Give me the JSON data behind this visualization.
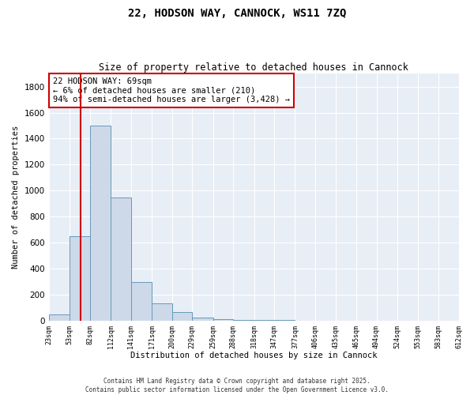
{
  "title": "22, HODSON WAY, CANNOCK, WS11 7ZQ",
  "subtitle": "Size of property relative to detached houses in Cannock",
  "xlabel": "Distribution of detached houses by size in Cannock",
  "ylabel": "Number of detached properties",
  "bar_color": "#cdd9e8",
  "bar_edge_color": "#6699bb",
  "background_color": "#e8eef6",
  "grid_color": "#ffffff",
  "bins": [
    23,
    53,
    82,
    112,
    141,
    171,
    200,
    229,
    259,
    288,
    318,
    347,
    377,
    406,
    435,
    465,
    494,
    524,
    553,
    583,
    612
  ],
  "values": [
    50,
    650,
    1500,
    950,
    295,
    135,
    65,
    25,
    15,
    5,
    3,
    3,
    2,
    1,
    1,
    1,
    0,
    0,
    1,
    0
  ],
  "vline_x": 69,
  "vline_color": "#cc0000",
  "annotation_text": "22 HODSON WAY: 69sqm\n← 6% of detached houses are smaller (210)\n94% of semi-detached houses are larger (3,428) →",
  "ylim": [
    0,
    1900
  ],
  "yticks": [
    0,
    200,
    400,
    600,
    800,
    1000,
    1200,
    1400,
    1600,
    1800
  ],
  "footer_line1": "Contains HM Land Registry data © Crown copyright and database right 2025.",
  "footer_line2": "Contains public sector information licensed under the Open Government Licence v3.0."
}
